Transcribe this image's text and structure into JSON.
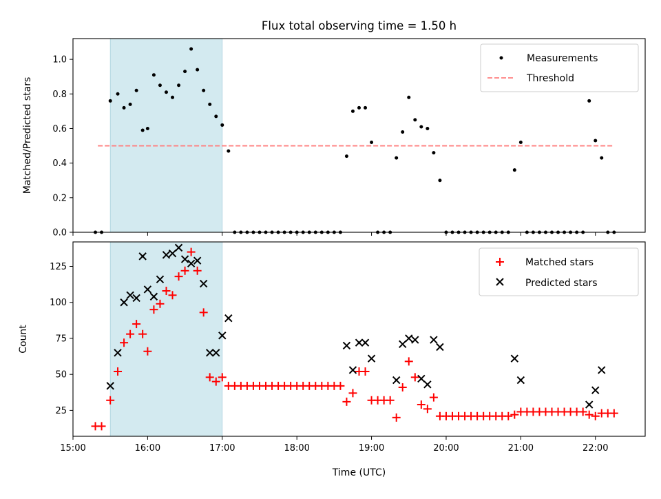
{
  "chart_data": [
    {
      "type": "scatter",
      "title": "Flux total observing time = 1.50 h",
      "xlabel": "",
      "ylabel": "Matched/Predicted stars",
      "xlim": [
        "15:00",
        "22:40"
      ],
      "ylim": [
        0,
        1.12
      ],
      "yticks": [
        "0.0",
        "0.2",
        "0.4",
        "0.6",
        "0.8",
        "1.0"
      ],
      "highlight_span": [
        "15:30",
        "17:00"
      ],
      "highlight_color": "#d3eaf0",
      "legend_position": "top-right",
      "series": [
        {
          "name": "Measurements",
          "marker": "dot",
          "color": "#000000",
          "points": [
            [
              "15:18",
              0
            ],
            [
              "15:23",
              0
            ],
            [
              "15:30",
              0.76
            ],
            [
              "15:36",
              0.8
            ],
            [
              "15:41",
              0.72
            ],
            [
              "15:46",
              0.74
            ],
            [
              "15:51",
              0.82
            ],
            [
              "15:56",
              0.59
            ],
            [
              "16:00",
              0.6
            ],
            [
              "16:05",
              0.91
            ],
            [
              "16:10",
              0.85
            ],
            [
              "16:15",
              0.81
            ],
            [
              "16:20",
              0.78
            ],
            [
              "16:25",
              0.85
            ],
            [
              "16:30",
              0.93
            ],
            [
              "16:35",
              1.06
            ],
            [
              "16:40",
              0.94
            ],
            [
              "16:45",
              0.82
            ],
            [
              "16:50",
              0.74
            ],
            [
              "16:55",
              0.67
            ],
            [
              "17:00",
              0.62
            ],
            [
              "17:05",
              0.47
            ],
            [
              "17:10",
              0
            ],
            [
              "17:15",
              0
            ],
            [
              "17:20",
              0
            ],
            [
              "17:25",
              0
            ],
            [
              "17:30",
              0
            ],
            [
              "17:35",
              0
            ],
            [
              "17:40",
              0
            ],
            [
              "17:45",
              0
            ],
            [
              "17:50",
              0
            ],
            [
              "17:55",
              0
            ],
            [
              "18:00",
              0
            ],
            [
              "18:05",
              0
            ],
            [
              "18:10",
              0
            ],
            [
              "18:15",
              0
            ],
            [
              "18:20",
              0
            ],
            [
              "18:25",
              0
            ],
            [
              "18:30",
              0
            ],
            [
              "18:35",
              0
            ],
            [
              "18:40",
              0.44
            ],
            [
              "18:45",
              0.7
            ],
            [
              "18:50",
              0.72
            ],
            [
              "18:55",
              0.72
            ],
            [
              "19:00",
              0.52
            ],
            [
              "19:05",
              0
            ],
            [
              "19:10",
              0
            ],
            [
              "19:15",
              0
            ],
            [
              "19:20",
              0.43
            ],
            [
              "19:25",
              0.58
            ],
            [
              "19:30",
              0.78
            ],
            [
              "19:35",
              0.65
            ],
            [
              "19:40",
              0.61
            ],
            [
              "19:45",
              0.6
            ],
            [
              "19:50",
              0.46
            ],
            [
              "19:55",
              0.3
            ],
            [
              "20:00",
              0
            ],
            [
              "20:05",
              0
            ],
            [
              "20:10",
              0
            ],
            [
              "20:15",
              0
            ],
            [
              "20:20",
              0
            ],
            [
              "20:25",
              0
            ],
            [
              "20:30",
              0
            ],
            [
              "20:35",
              0
            ],
            [
              "20:40",
              0
            ],
            [
              "20:45",
              0
            ],
            [
              "20:50",
              0
            ],
            [
              "20:55",
              0.36
            ],
            [
              "21:00",
              0.52
            ],
            [
              "21:05",
              0
            ],
            [
              "21:10",
              0
            ],
            [
              "21:15",
              0
            ],
            [
              "21:20",
              0
            ],
            [
              "21:25",
              0
            ],
            [
              "21:30",
              0
            ],
            [
              "21:35",
              0
            ],
            [
              "21:40",
              0
            ],
            [
              "21:45",
              0
            ],
            [
              "21:50",
              0
            ],
            [
              "21:55",
              0.76
            ],
            [
              "22:00",
              0.53
            ],
            [
              "22:05",
              0.43
            ],
            [
              "22:10",
              0
            ],
            [
              "22:15",
              0
            ]
          ]
        },
        {
          "name": "Threshold",
          "marker": "dashed-line",
          "color": "#ff7f7f",
          "points": [
            [
              "15:20",
              0.5
            ],
            [
              "22:15",
              0.5
            ]
          ]
        }
      ]
    },
    {
      "type": "scatter",
      "title": "",
      "xlabel": "Time (UTC)",
      "ylabel": "Count",
      "xlim": [
        "15:00",
        "22:40"
      ],
      "xticks": [
        "15:00",
        "16:00",
        "17:00",
        "18:00",
        "19:00",
        "20:00",
        "21:00",
        "22:00"
      ],
      "ylim": [
        7,
        142
      ],
      "yticks": [
        "25",
        "50",
        "75",
        "100",
        "125"
      ],
      "highlight_span": [
        "15:30",
        "17:00"
      ],
      "highlight_color": "#d3eaf0",
      "legend_position": "top-right",
      "series": [
        {
          "name": "Matched stars",
          "marker": "plus",
          "color": "#ff0000",
          "points": [
            [
              "15:18",
              14
            ],
            [
              "15:23",
              14
            ],
            [
              "15:30",
              32
            ],
            [
              "15:36",
              52
            ],
            [
              "15:41",
              72
            ],
            [
              "15:46",
              78
            ],
            [
              "15:51",
              85
            ],
            [
              "15:56",
              78
            ],
            [
              "16:00",
              66
            ],
            [
              "16:05",
              95
            ],
            [
              "16:10",
              99
            ],
            [
              "16:15",
              108
            ],
            [
              "16:20",
              105
            ],
            [
              "16:25",
              118
            ],
            [
              "16:30",
              122
            ],
            [
              "16:35",
              135
            ],
            [
              "16:40",
              122
            ],
            [
              "16:45",
              93
            ],
            [
              "16:50",
              48
            ],
            [
              "16:55",
              45
            ],
            [
              "17:00",
              48
            ],
            [
              "17:05",
              42
            ],
            [
              "17:10",
              42
            ],
            [
              "17:15",
              42
            ],
            [
              "17:20",
              42
            ],
            [
              "17:25",
              42
            ],
            [
              "17:30",
              42
            ],
            [
              "17:35",
              42
            ],
            [
              "17:40",
              42
            ],
            [
              "17:45",
              42
            ],
            [
              "17:50",
              42
            ],
            [
              "17:55",
              42
            ],
            [
              "18:00",
              42
            ],
            [
              "18:05",
              42
            ],
            [
              "18:10",
              42
            ],
            [
              "18:15",
              42
            ],
            [
              "18:20",
              42
            ],
            [
              "18:25",
              42
            ],
            [
              "18:30",
              42
            ],
            [
              "18:35",
              42
            ],
            [
              "18:40",
              31
            ],
            [
              "18:45",
              37
            ],
            [
              "18:50",
              52
            ],
            [
              "18:55",
              52
            ],
            [
              "19:00",
              32
            ],
            [
              "19:05",
              32
            ],
            [
              "19:10",
              32
            ],
            [
              "19:15",
              32
            ],
            [
              "19:20",
              20
            ],
            [
              "19:25",
              41
            ],
            [
              "19:30",
              59
            ],
            [
              "19:35",
              48
            ],
            [
              "19:40",
              29
            ],
            [
              "19:45",
              26
            ],
            [
              "19:50",
              34
            ],
            [
              "19:55",
              21
            ],
            [
              "20:00",
              21
            ],
            [
              "20:05",
              21
            ],
            [
              "20:10",
              21
            ],
            [
              "20:15",
              21
            ],
            [
              "20:20",
              21
            ],
            [
              "20:25",
              21
            ],
            [
              "20:30",
              21
            ],
            [
              "20:35",
              21
            ],
            [
              "20:40",
              21
            ],
            [
              "20:45",
              21
            ],
            [
              "20:50",
              21
            ],
            [
              "20:55",
              22
            ],
            [
              "21:00",
              24
            ],
            [
              "21:05",
              24
            ],
            [
              "21:10",
              24
            ],
            [
              "21:15",
              24
            ],
            [
              "21:20",
              24
            ],
            [
              "21:25",
              24
            ],
            [
              "21:30",
              24
            ],
            [
              "21:35",
              24
            ],
            [
              "21:40",
              24
            ],
            [
              "21:45",
              24
            ],
            [
              "21:50",
              24
            ],
            [
              "21:55",
              22
            ],
            [
              "22:00",
              21
            ],
            [
              "22:05",
              23
            ],
            [
              "22:10",
              23
            ],
            [
              "22:15",
              23
            ]
          ]
        },
        {
          "name": "Predicted stars",
          "marker": "x",
          "color": "#000000",
          "points": [
            [
              "15:30",
              42
            ],
            [
              "15:36",
              65
            ],
            [
              "15:41",
              100
            ],
            [
              "15:46",
              105
            ],
            [
              "15:51",
              103
            ],
            [
              "15:56",
              132
            ],
            [
              "16:00",
              109
            ],
            [
              "16:05",
              104
            ],
            [
              "16:10",
              116
            ],
            [
              "16:15",
              133
            ],
            [
              "16:20",
              134
            ],
            [
              "16:25",
              138
            ],
            [
              "16:30",
              130
            ],
            [
              "16:35",
              127
            ],
            [
              "16:40",
              129
            ],
            [
              "16:45",
              113
            ],
            [
              "16:50",
              65
            ],
            [
              "16:55",
              65
            ],
            [
              "17:00",
              77
            ],
            [
              "17:05",
              89
            ],
            [
              "18:40",
              70
            ],
            [
              "18:45",
              53
            ],
            [
              "18:50",
              72
            ],
            [
              "18:55",
              72
            ],
            [
              "19:00",
              61
            ],
            [
              "19:20",
              46
            ],
            [
              "19:25",
              71
            ],
            [
              "19:30",
              75
            ],
            [
              "19:35",
              74
            ],
            [
              "19:40",
              47
            ],
            [
              "19:45",
              43
            ],
            [
              "19:50",
              74
            ],
            [
              "19:55",
              69
            ],
            [
              "20:55",
              61
            ],
            [
              "21:00",
              46
            ],
            [
              "21:55",
              29
            ],
            [
              "22:00",
              39
            ],
            [
              "22:05",
              53
            ]
          ]
        }
      ]
    }
  ]
}
